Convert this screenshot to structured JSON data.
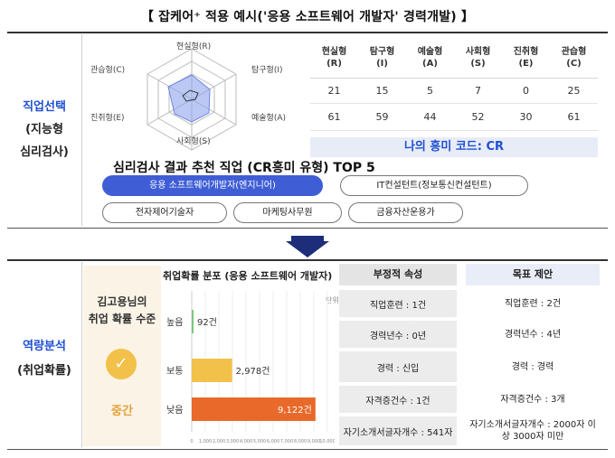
{
  "title": "【 잡케어⁺ 적용 예시('응용 소프트웨어 개발자' 경력개발) 】",
  "section1": {
    "label_line1": "직업선택",
    "label_line2": "(지능형",
    "label_line3": "심리검사)",
    "radar_labels": [
      "현실형(R)",
      "탐구형(I)",
      "예술형(A)",
      "사회형(S)",
      "진취형(E)",
      "관습형(C)"
    ],
    "score_table": {
      "headers": [
        [
          "현실형",
          "(R)"
        ],
        [
          "탐구형",
          "(I)"
        ],
        [
          "예술형",
          "(A)"
        ],
        [
          "사회형",
          "(S)"
        ],
        [
          "진취형",
          "(E)"
        ],
        [
          "관습형",
          "(C)"
        ]
      ],
      "rows": [
        [
          "21",
          "15",
          "5",
          "7",
          "0",
          "25"
        ],
        [
          "61",
          "59",
          "44",
          "52",
          "30",
          "61"
        ]
      ]
    },
    "code_text": "나의 흥미 코드: CR",
    "top5_title": "심리검사 결과 추천 직업 (CR흥미 유형) TOP 5",
    "jobs": [
      "응용 소프트웨어개발자(엔지니어)",
      "IT컨설턴트(정보통신컨설턴트)",
      "전자제어기술자",
      "마케팅사무원",
      "금융자산운용가"
    ]
  },
  "section2": {
    "label_line1": "역량분석",
    "label_line2": "(취업확률)",
    "user_line1": "김고용님의",
    "user_line2": "취업 확률 수준",
    "check_icon": "✓",
    "level": "중간",
    "chart_data": {
      "type": "bar",
      "title": "취업확률 분포 (응용 소프트웨어 개발자)",
      "unit": "단위",
      "categories": [
        "높음",
        "보통",
        "낮음"
      ],
      "values": [
        92,
        2978,
        9122
      ],
      "value_labels": [
        "92건",
        "2,978건",
        "9,122건"
      ],
      "colors": [
        "#7bc67b",
        "#f2c14a",
        "#e8692a"
      ],
      "xlim": [
        0,
        10000
      ],
      "x_ticks": [
        "0",
        "1,000",
        "2,000",
        "3,000",
        "4,000",
        "5,000",
        "6,000",
        "7,000",
        "8,000",
        "9,000",
        "10,000"
      ],
      "grid": true
    },
    "negative_header": "부정적 속성",
    "goal_header": "목표 제안",
    "negative_items": [
      "직업훈련 : 1건",
      "경력년수 : 0년",
      "경력 : 신입",
      "자격증건수 : 1건",
      "자기소개서글자개수 : 541자"
    ],
    "goal_items": [
      "직업훈련 : 2건",
      "경력년수 : 4년",
      "경력 : 경력",
      "자격증건수 : 3개",
      "자기소개서글자개수 : 2000자 이상 3000자 미만"
    ]
  }
}
